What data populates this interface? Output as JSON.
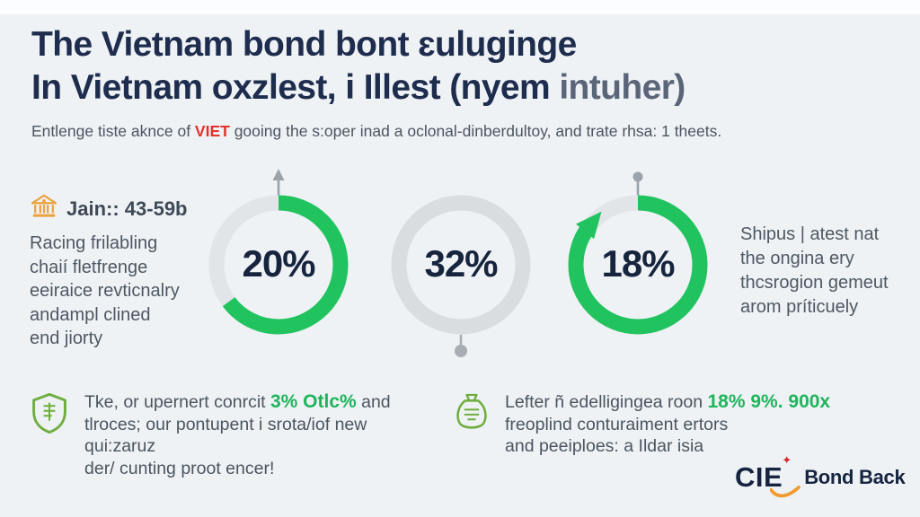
{
  "header": {
    "title_line1": "The Vietnam bond bont ɛuluginge",
    "title_line2_main": "In Vietnam oxzlest, i Illest (nyem ",
    "title_line2_muted": "intuher)",
    "subtitle_prefix": "Entlenge tiste aknce of ",
    "subtitle_highlight": "VIET",
    "subtitle_suffix": " gooing the s:oper inad a oclonal-dinberdultoy, and trate rhsa: 1 theets."
  },
  "left_note": {
    "icon": "bank-icon",
    "heading": "Jain:: 43-59b",
    "lines": [
      "Racing frilabling",
      "chaií fletfrenge",
      "eeiraice revticnalry",
      "andampl clined",
      "end jiorty"
    ]
  },
  "right_note": {
    "lines": [
      "Shipus | atest nat",
      "the ongina ery",
      "thcsrogion gemeut",
      "arom príticuely"
    ]
  },
  "stat_notes": [
    {
      "icon": "shield-icon",
      "line1_prefix": "Tke, or upernert conrcit ",
      "line1_highlight": "3% Otlc%",
      "line1_suffix": " and",
      "line2": "tlroces; our pontupent i srota/iof new qui:zaruz",
      "line3": "der/ cunting proot encer!"
    },
    {
      "icon": "money-bag-icon",
      "line1_prefix": "Lefter ñ edelligingea roon ",
      "line1_highlight": "18% 9%. 900x",
      "line1_suffix": "",
      "line2": "freoplind conturaiment ertors",
      "line3": "and peeiploes: a Ildar isia"
    }
  ],
  "logo": {
    "mark": "CIE",
    "star": "✦",
    "name": "Bond Back"
  },
  "colors": {
    "accent_green": "#21c35f",
    "navy": "#1e2c4e",
    "red": "#e5322d",
    "orange": "#eda23f",
    "icon_green": "#6fae3e",
    "ring_gray": "#e2e5e8",
    "pin_gray": "#9aa3aa"
  },
  "chart_data": {
    "type": "pie",
    "title": "Vietnam bond infographic donut gauges",
    "legend_position": "none",
    "series": [
      {
        "name": "gauge-1",
        "value_label": "20%",
        "value": 20,
        "arc_fraction": 0.648,
        "arc_color": "#21c35f",
        "ring_color": "#e2e5e8",
        "marker": "arrow-pin-top"
      },
      {
        "name": "gauge-2",
        "value_label": "32%",
        "value": 32,
        "arc_fraction": 0,
        "arc_color": "#21c35f",
        "ring_color": "#d9dde0",
        "marker": "dot-pin-bottom"
      },
      {
        "name": "gauge-3",
        "value_label": "18%",
        "value": 18,
        "arc_fraction": 0.86,
        "arc_color": "#21c35f",
        "ring_color": "#e2e5e8",
        "marker": "dot-pin-top-and-ccw-arrowhead"
      }
    ]
  }
}
